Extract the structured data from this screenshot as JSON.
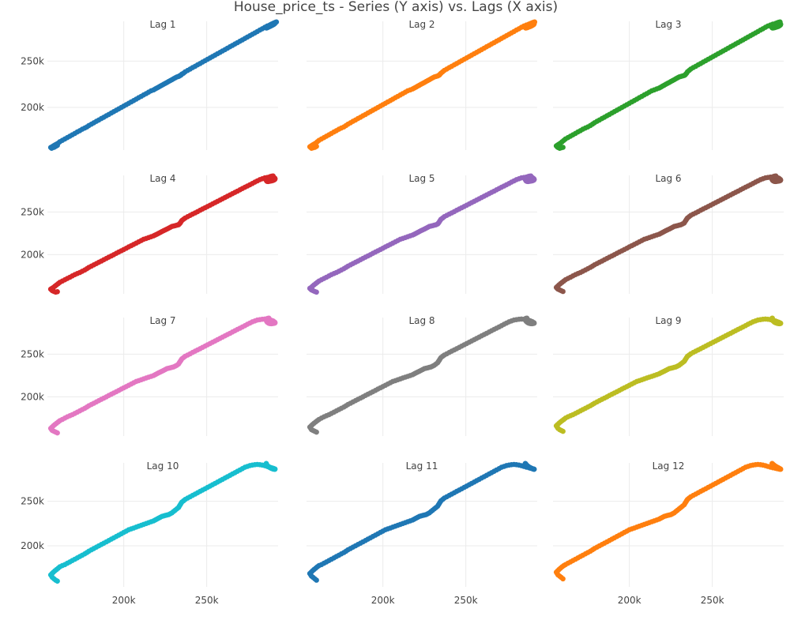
{
  "chart_data": {
    "type": "scatter",
    "title": "House_price_ts - Series (Y axis) vs. Lags (X axis)",
    "xlabel": "",
    "ylabel": "",
    "xlim": [
      154000,
      293000
    ],
    "ylim": [
      154000,
      293000
    ],
    "x_ticks": [
      "200k",
      "250k"
    ],
    "y_ticks": [
      "200k",
      "250k"
    ],
    "grid": true,
    "legend": "none",
    "layout": "4 rows x 3 columns",
    "panels": [
      {
        "name": "Lag 1",
        "lag": 1,
        "color": "#1f77b4"
      },
      {
        "name": "Lag 2",
        "lag": 2,
        "color": "#ff7f0e"
      },
      {
        "name": "Lag 3",
        "lag": 3,
        "color": "#2ca02c"
      },
      {
        "name": "Lag 4",
        "lag": 4,
        "color": "#d62728"
      },
      {
        "name": "Lag 5",
        "lag": 5,
        "color": "#9467bd"
      },
      {
        "name": "Lag 6",
        "lag": 6,
        "color": "#8c564b"
      },
      {
        "name": "Lag 7",
        "lag": 7,
        "color": "#e377c2"
      },
      {
        "name": "Lag 8",
        "lag": 8,
        "color": "#7f7f7f"
      },
      {
        "name": "Lag 9",
        "lag": 9,
        "color": "#bcbd22"
      },
      {
        "name": "Lag 10",
        "lag": 10,
        "color": "#17becf"
      },
      {
        "name": "Lag 11",
        "lag": 11,
        "color": "#1f77b4"
      },
      {
        "name": "Lag 12",
        "lag": 12,
        "color": "#ff7f0e"
      }
    ],
    "series": [
      {
        "values": [
          160000,
          159000,
          158000,
          157000,
          156500,
          156000,
          156800,
          157600,
          158500,
          159500,
          160500,
          161500,
          163000,
          164500,
          166000,
          167500,
          169000,
          170500,
          172000,
          173500,
          175000,
          176500,
          177800,
          179000,
          180500,
          182000,
          183500,
          185000,
          186500,
          188000,
          189500,
          191000,
          192500,
          194000,
          195500,
          197000,
          198500,
          200000,
          201500,
          203000,
          204500,
          206000,
          207500,
          209000,
          210500,
          212000,
          213500,
          215000,
          216500,
          218000,
          219000,
          220000,
          221000,
          222000,
          223000,
          224000,
          225000,
          226000,
          227000,
          228000,
          229000,
          230000,
          231000,
          232000,
          233000,
          233500,
          234000,
          234500,
          235000,
          236000,
          237000,
          238500,
          240000,
          241500,
          243000,
          244500,
          246000,
          247500,
          249000,
          250500,
          252000,
          253500,
          255000,
          256500,
          258000,
          259500,
          261000,
          262500,
          264000,
          265500,
          267000,
          268500,
          270000,
          271500,
          273000,
          274500,
          276000,
          277500,
          279000,
          280500,
          282000,
          283500,
          285000,
          286500,
          288000,
          289000,
          290000,
          290500,
          291000,
          291200,
          291000,
          290500,
          289800,
          289000,
          288200,
          287500,
          287000,
          286500,
          286200,
          286000,
          285800,
          285900,
          286200,
          286800,
          287500,
          288300,
          289200,
          290000,
          290800,
          291500,
          292000,
          292300
        ]
      }
    ]
  }
}
